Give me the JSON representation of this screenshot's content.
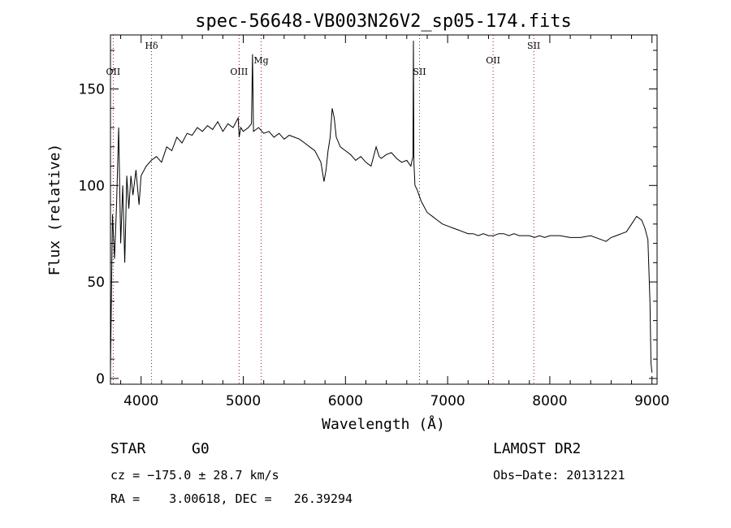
{
  "chart_data": {
    "type": "line",
    "title": "spec-56648-VB003N26V2_sp05-174.fits",
    "xlabel": "Wavelength (Å)",
    "ylabel": "Flux (relative)",
    "xlim": [
      3700,
      9050
    ],
    "ylim": [
      -3,
      178
    ],
    "xticks": [
      4000,
      5000,
      6000,
      7000,
      8000,
      9000
    ],
    "yticks": [
      0,
      50,
      100,
      150
    ],
    "grid": false,
    "line_color": "#000000",
    "marker_color": "#cc0000",
    "line_markers": [
      {
        "name": "OII",
        "x": 3727
      },
      {
        "name": "Hδ",
        "x": 4102
      },
      {
        "name": "OIII",
        "x": 4959
      },
      {
        "name": "Mg",
        "x": 5175
      },
      {
        "name": "SII",
        "x": 6725
      },
      {
        "name": "OII",
        "x": 7445
      },
      {
        "name": "SII",
        "x": 7843
      }
    ],
    "series": [
      {
        "x": [
          3700,
          3720,
          3740,
          3760,
          3780,
          3800,
          3820,
          3840,
          3860,
          3880,
          3900,
          3920,
          3950,
          3980,
          4000,
          4050,
          4100,
          4150,
          4200,
          4250,
          4300,
          4350,
          4400,
          4450,
          4500,
          4550,
          4600,
          4650,
          4700,
          4750,
          4800,
          4850,
          4900,
          4950,
          4960,
          4975,
          5000,
          5050,
          5080,
          5090,
          5100,
          5150,
          5200,
          5250,
          5300,
          5350,
          5400,
          5450,
          5500,
          5550,
          5600,
          5650,
          5700,
          5730,
          5760,
          5790,
          5810,
          5830,
          5850,
          5870,
          5890,
          5910,
          5950,
          6000,
          6050,
          6100,
          6150,
          6200,
          6250,
          6300,
          6330,
          6350,
          6400,
          6450,
          6500,
          6550,
          6600,
          6640,
          6660,
          6665,
          6670,
          6680,
          6700,
          6720,
          6740,
          6760,
          6780,
          6800,
          6850,
          6900,
          6950,
          7000,
          7050,
          7100,
          7150,
          7200,
          7250,
          7300,
          7350,
          7400,
          7450,
          7500,
          7550,
          7600,
          7650,
          7700,
          7750,
          7800,
          7850,
          7900,
          7950,
          8000,
          8100,
          8200,
          8300,
          8400,
          8500,
          8550,
          8600,
          8650,
          8700,
          8750,
          8800,
          8850,
          8900,
          8930,
          8960,
          8980,
          8990,
          9000
        ],
        "y": [
          5,
          85,
          62,
          90,
          130,
          70,
          100,
          60,
          105,
          88,
          105,
          95,
          108,
          90,
          105,
          110,
          113,
          115,
          112,
          120,
          118,
          125,
          122,
          127,
          126,
          130,
          128,
          131,
          129,
          133,
          128,
          132,
          130,
          135,
          125,
          130,
          128,
          130,
          132,
          168,
          128,
          130,
          127,
          128,
          125,
          127,
          124,
          126,
          125,
          124,
          122,
          120,
          118,
          115,
          112,
          102,
          108,
          118,
          125,
          140,
          135,
          125,
          120,
          118,
          116,
          113,
          115,
          112,
          110,
          120,
          115,
          114,
          116,
          117,
          114,
          112,
          113,
          110,
          115,
          175,
          112,
          100,
          98,
          95,
          92,
          90,
          88,
          86,
          84,
          82,
          80,
          79,
          78,
          77,
          76,
          75,
          75,
          74,
          75,
          74,
          74,
          75,
          75,
          74,
          75,
          74,
          74,
          74,
          73,
          74,
          73,
          74,
          74,
          73,
          73,
          74,
          72,
          71,
          73,
          74,
          75,
          76,
          80,
          84,
          82,
          78,
          72,
          40,
          8,
          3
        ]
      }
    ]
  },
  "footer": {
    "object_class": "STAR",
    "subclass": "G0",
    "cz": "cz = −175.0 ± 28.7 km/s",
    "coords": "RA =    3.00618, DEC =   26.39294",
    "survey": "LAMOST DR2",
    "obs_date": "Obs−Date: 20131221"
  }
}
